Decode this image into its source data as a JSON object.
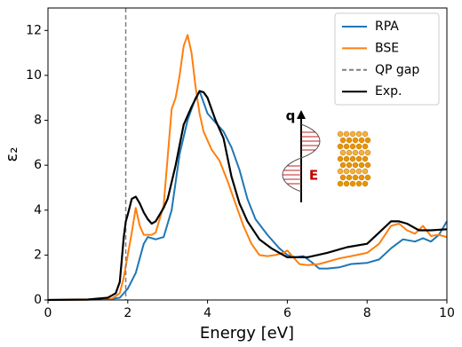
{
  "chart_data": {
    "type": "line",
    "xlabel": "Energy [eV]",
    "ylabel": "ε₂",
    "xlim": [
      0,
      10
    ],
    "ylim": [
      0,
      13
    ],
    "xticks": [
      0,
      2,
      4,
      6,
      8,
      10
    ],
    "yticks": [
      0,
      2,
      4,
      6,
      8,
      10,
      12
    ],
    "legend": "upper right",
    "inset_labels": [
      "q",
      "E"
    ],
    "series": [
      {
        "name": "RPA",
        "color": "#1f77b4",
        "x": [
          0,
          1.0,
          1.5,
          1.8,
          2.0,
          2.2,
          2.4,
          2.5,
          2.7,
          2.9,
          3.1,
          3.3,
          3.5,
          3.7,
          3.8,
          3.9,
          4.0,
          4.2,
          4.4,
          4.6,
          4.8,
          5.0,
          5.2,
          5.5,
          5.8,
          6.0,
          6.2,
          6.4,
          6.6,
          6.8,
          7.0,
          7.3,
          7.6,
          8.0,
          8.3,
          8.6,
          8.9,
          9.2,
          9.4,
          9.6,
          9.8,
          10.0
        ],
        "values": [
          0,
          0.01,
          0.03,
          0.1,
          0.5,
          1.2,
          2.5,
          2.8,
          2.7,
          2.8,
          4.0,
          6.5,
          8.0,
          9.0,
          9.3,
          8.8,
          8.3,
          7.9,
          7.5,
          6.8,
          5.8,
          4.5,
          3.6,
          2.9,
          2.3,
          2.0,
          1.9,
          1.95,
          1.7,
          1.4,
          1.4,
          1.45,
          1.6,
          1.65,
          1.8,
          2.3,
          2.7,
          2.6,
          2.75,
          2.6,
          2.9,
          3.5
        ]
      },
      {
        "name": "BSE",
        "color": "#ff7f0e",
        "x": [
          0,
          1.0,
          1.6,
          1.8,
          1.9,
          2.0,
          2.1,
          2.2,
          2.3,
          2.4,
          2.6,
          2.7,
          2.9,
          3.1,
          3.2,
          3.3,
          3.4,
          3.5,
          3.6,
          3.7,
          3.8,
          3.9,
          4.1,
          4.3,
          4.5,
          4.7,
          4.9,
          5.1,
          5.3,
          5.5,
          5.7,
          5.9,
          6.0,
          6.1,
          6.3,
          6.5,
          6.8,
          7.0,
          7.3,
          7.6,
          8.0,
          8.3,
          8.6,
          8.8,
          9.0,
          9.2,
          9.4,
          9.6,
          9.8,
          10.0
        ],
        "values": [
          0,
          0.01,
          0.05,
          0.3,
          1.0,
          2.0,
          3.0,
          4.1,
          3.3,
          2.9,
          2.9,
          3.0,
          4.2,
          8.5,
          9.0,
          10.0,
          11.3,
          11.8,
          11.0,
          9.5,
          8.3,
          7.5,
          6.7,
          6.2,
          5.3,
          4.3,
          3.3,
          2.5,
          2.0,
          1.95,
          2.0,
          2.1,
          2.2,
          2.0,
          1.6,
          1.55,
          1.6,
          1.7,
          1.85,
          1.95,
          2.1,
          2.5,
          3.3,
          3.4,
          3.1,
          2.95,
          3.3,
          2.85,
          2.9,
          2.8
        ]
      },
      {
        "name": "QP gap",
        "color": "#7f7f7f",
        "style": "vline",
        "x": 1.95
      },
      {
        "name": "Exp.",
        "color": "#000000",
        "x": [
          0,
          1.0,
          1.5,
          1.7,
          1.8,
          1.85,
          1.9,
          1.95,
          2.0,
          2.1,
          2.2,
          2.3,
          2.4,
          2.5,
          2.6,
          2.7,
          2.8,
          2.9,
          3.0,
          3.2,
          3.4,
          3.6,
          3.8,
          3.9,
          4.0,
          4.2,
          4.4,
          4.6,
          4.8,
          5.0,
          5.3,
          5.6,
          6.0,
          6.5,
          7.0,
          7.5,
          8.0,
          8.3,
          8.6,
          8.8,
          9.0,
          9.3,
          9.6,
          10.0
        ],
        "values": [
          0,
          0.02,
          0.1,
          0.3,
          0.8,
          1.8,
          2.8,
          3.5,
          3.8,
          4.5,
          4.6,
          4.3,
          3.9,
          3.6,
          3.4,
          3.5,
          3.8,
          4.1,
          4.5,
          6.0,
          7.8,
          8.6,
          9.3,
          9.25,
          9.0,
          8.0,
          7.2,
          5.5,
          4.3,
          3.5,
          2.7,
          2.3,
          1.9,
          1.9,
          2.1,
          2.35,
          2.5,
          3.0,
          3.5,
          3.5,
          3.4,
          3.1,
          3.1,
          3.15
        ]
      }
    ]
  }
}
